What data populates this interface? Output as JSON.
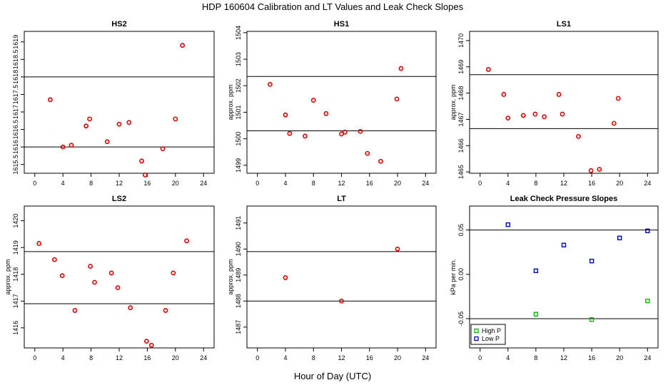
{
  "figure": {
    "title": "HDP  160604  Calibration and LT Values and Leak Check Slopes",
    "xlabel": "Hour of Day (UTC)"
  },
  "chart_data": [
    {
      "type": "scatter",
      "id": "hs2",
      "title": "HS2",
      "ylabel": "",
      "xlim": [
        -1.5,
        25.5
      ],
      "xticks": [
        0,
        4,
        8,
        12,
        16,
        20,
        24
      ],
      "ylim": [
        1615.25,
        1619.3
      ],
      "yticks": [
        1615.5,
        1616,
        1616.5,
        1617,
        1617.5,
        1618,
        1618.5,
        1619
      ],
      "ytick_labels": [
        "1615.5",
        "1616",
        "1616.5",
        "1617",
        "1617.5",
        "1618",
        "1618.5",
        "1619"
      ],
      "hlines": [
        1616.0,
        1618.0
      ],
      "series": [
        {
          "name": "",
          "color": "#dd0000",
          "marker": "circle",
          "x": [
            2.2,
            4,
            5.2,
            7.3,
            7.8,
            10.3,
            12,
            13.4,
            15.2,
            15.7,
            18.2,
            20,
            21
          ],
          "y": [
            1617.35,
            1616,
            1616.05,
            1616.6,
            1616.8,
            1616.15,
            1616.65,
            1616.7,
            1615.6,
            1615.2,
            1615.95,
            1616.8,
            1618.9
          ]
        }
      ]
    },
    {
      "type": "scatter",
      "id": "hs1",
      "title": "HS1",
      "ylabel": "approx. ppm",
      "xlim": [
        -1.5,
        25.5
      ],
      "xticks": [
        0,
        4,
        8,
        12,
        16,
        20,
        24
      ],
      "ylim": [
        1498.7,
        1504.05
      ],
      "yticks": [
        1499,
        1500,
        1501,
        1502,
        1503,
        1504
      ],
      "ytick_labels": [
        "1499",
        "1500",
        "1501",
        "1502",
        "1503",
        "1504"
      ],
      "hlines": [
        1500.3,
        1502.35
      ],
      "series": [
        {
          "name": "",
          "color": "#dd0000",
          "marker": "circle",
          "x": [
            1.8,
            4,
            4.6,
            6.8,
            8,
            9.8,
            12,
            12.5,
            14.7,
            15.7,
            17.6,
            19.9,
            20.5
          ],
          "y": [
            1502.05,
            1500.9,
            1500.2,
            1500.1,
            1501.45,
            1500.95,
            1500.18,
            1500.25,
            1500.28,
            1499.45,
            1499.15,
            1501.5,
            1502.65
          ]
        }
      ]
    },
    {
      "type": "scatter",
      "id": "ls1",
      "title": "LS1",
      "ylabel": "approx. ppm",
      "xlim": [
        -1.5,
        25.5
      ],
      "xticks": [
        0,
        4,
        8,
        12,
        16,
        20,
        24
      ],
      "ylim": [
        1464.95,
        1470.35
      ],
      "yticks": [
        1465,
        1466,
        1467,
        1468,
        1469,
        1470
      ],
      "ytick_labels": [
        "1465",
        "1466",
        "1467",
        "1468",
        "1469",
        "1470"
      ],
      "hlines": [
        1466.65,
        1468.7
      ],
      "series": [
        {
          "name": "",
          "color": "#dd0000",
          "marker": "circle",
          "x": [
            1.2,
            3.4,
            4,
            6.2,
            7.9,
            9.2,
            11.3,
            11.8,
            14.1,
            15.9,
            17.1,
            19.2,
            19.8
          ],
          "y": [
            1468.9,
            1467.95,
            1467.05,
            1467.15,
            1467.2,
            1467.1,
            1467.95,
            1467.2,
            1466.35,
            1465.05,
            1465.1,
            1466.85,
            1467.8
          ]
        }
      ]
    },
    {
      "type": "scatter",
      "id": "ls2",
      "title": "LS2",
      "ylabel": "approx. ppm",
      "xlim": [
        -1.5,
        25.5
      ],
      "xticks": [
        0,
        4,
        8,
        12,
        16,
        20,
        24
      ],
      "ylim": [
        1415.25,
        1420.55
      ],
      "yticks": [
        1416,
        1417,
        1418,
        1419,
        1420
      ],
      "ytick_labels": [
        "1416",
        "1417",
        "1418",
        "1419",
        "1420"
      ],
      "hlines": [
        1416.9,
        1418.85
      ],
      "series": [
        {
          "name": "",
          "color": "#dd0000",
          "marker": "circle",
          "x": [
            0.6,
            2.8,
            3.9,
            5.7,
            7.9,
            8.5,
            10.9,
            11.8,
            13.6,
            15.9,
            16.6,
            18.6,
            19.7,
            21.6
          ],
          "y": [
            1419.15,
            1418.55,
            1417.95,
            1416.65,
            1418.3,
            1417.7,
            1418.05,
            1417.5,
            1416.75,
            1415.5,
            1415.35,
            1416.65,
            1418.05,
            1419.25
          ]
        }
      ]
    },
    {
      "type": "scatter",
      "id": "lt",
      "title": "LT",
      "ylabel": "approx. ppm",
      "xlim": [
        -1.5,
        25.5
      ],
      "xticks": [
        0,
        4,
        8,
        12,
        16,
        20,
        24
      ],
      "ylim": [
        1486.2,
        1491.65
      ],
      "yticks": [
        1487,
        1488,
        1489,
        1490,
        1491
      ],
      "ytick_labels": [
        "1487",
        "1488",
        "1489",
        "1490",
        "1491"
      ],
      "hlines": [
        1488.0,
        1489.9
      ],
      "series": [
        {
          "name": "",
          "color": "#dd0000",
          "marker": "circle",
          "x": [
            4,
            12,
            20
          ],
          "y": [
            1488.9,
            1488,
            1490
          ]
        }
      ]
    },
    {
      "type": "scatter",
      "id": "leak",
      "title": "Leak Check Pressure Slopes",
      "ylabel": "kPa per min.",
      "xlim": [
        -1.5,
        25.5
      ],
      "xticks": [
        0,
        4,
        8,
        12,
        16,
        20,
        24
      ],
      "ylim": [
        -0.083,
        0.077
      ],
      "yticks": [
        -0.05,
        0,
        0.05
      ],
      "ytick_labels": [
        "-0.05",
        "0.00",
        "0.05"
      ],
      "hlines": [
        0.05,
        -0.05
      ],
      "series": [
        {
          "name": "High P",
          "color": "#00bb00",
          "marker": "square",
          "x": [
            8,
            16,
            24
          ],
          "y": [
            -0.045,
            -0.051,
            -0.03
          ]
        },
        {
          "name": "Low P",
          "color": "#0000cc",
          "marker": "square",
          "x": [
            4,
            8,
            12,
            16,
            20,
            24
          ],
          "y": [
            0.056,
            0.004,
            0.033,
            0.015,
            0.041,
            0.049
          ]
        }
      ],
      "legend": "bottom-left"
    }
  ]
}
